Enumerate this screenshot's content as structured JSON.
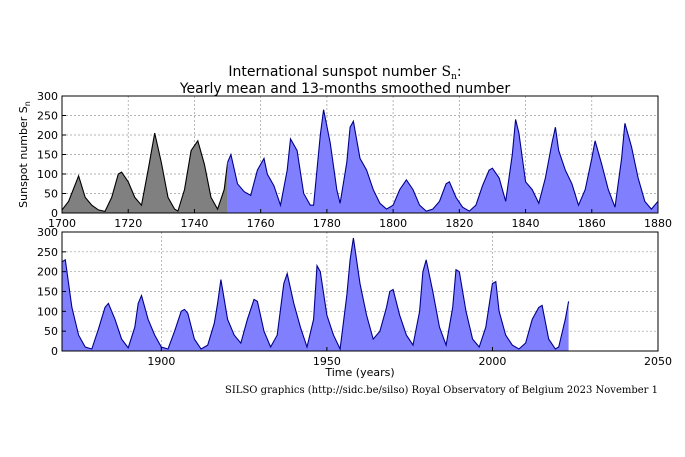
{
  "title_line1": "International sunspot number",
  "title_symbol": "S",
  "title_symbol_sub": "n",
  "title_colon": ":",
  "title_line2": "Yearly mean and 13-months smoothed number",
  "credit": "SILSO graphics (http://sidc.be/silso)  Royal Observatory of Belgium  2023 November 1",
  "colors": {
    "early": "#808080",
    "modern": "#8080ff",
    "modern_line": "#00008b",
    "early_line": "#000000"
  },
  "chart_data": [
    {
      "type": "area",
      "panel": "top",
      "ylabel": "Sunspot number S",
      "ylabel_sub": "n",
      "xlabel": "",
      "xlim": [
        1700,
        1880
      ],
      "ylim": [
        0,
        300
      ],
      "xticks": [
        1700,
        1720,
        1740,
        1760,
        1780,
        1800,
        1820,
        1840,
        1860,
        1880
      ],
      "yticks": [
        0,
        50,
        100,
        150,
        200,
        250,
        300
      ],
      "grid": true,
      "series": [
        {
          "style": "early",
          "until": 1750,
          "x": [
            1700,
            1702,
            1705,
            1707,
            1709,
            1711,
            1713,
            1715,
            1717,
            1718,
            1720,
            1722,
            1724,
            1726,
            1728,
            1730,
            1732,
            1734,
            1735,
            1737,
            1739,
            1741,
            1743,
            1745,
            1747,
            1749,
            1750
          ],
          "y": [
            8,
            30,
            95,
            40,
            20,
            8,
            4,
            40,
            100,
            105,
            80,
            40,
            20,
            110,
            205,
            130,
            40,
            10,
            5,
            60,
            160,
            185,
            125,
            40,
            10,
            60,
            130
          ]
        },
        {
          "style": "modern",
          "from": 1750,
          "x": [
            1750,
            1751,
            1753,
            1755,
            1757,
            1759,
            1761,
            1762,
            1764,
            1766,
            1768,
            1769,
            1771,
            1773,
            1775,
            1776,
            1778,
            1779,
            1781,
            1783,
            1784,
            1786,
            1787,
            1788,
            1790,
            1792,
            1794,
            1796,
            1798,
            1800,
            1802,
            1804,
            1806,
            1808,
            1810,
            1812,
            1814,
            1816,
            1817,
            1819,
            1821,
            1823,
            1825,
            1827,
            1829,
            1830,
            1832,
            1834,
            1836,
            1837,
            1838,
            1840,
            1842,
            1844,
            1846,
            1848,
            1849,
            1850,
            1852,
            1854,
            1856,
            1858,
            1860,
            1861,
            1863,
            1865,
            1867,
            1869,
            1870,
            1872,
            1874,
            1876,
            1878,
            1880
          ],
          "y": [
            130,
            150,
            75,
            55,
            45,
            110,
            140,
            100,
            70,
            20,
            110,
            190,
            160,
            50,
            20,
            20,
            200,
            265,
            180,
            60,
            25,
            130,
            220,
            235,
            140,
            110,
            60,
            25,
            10,
            20,
            60,
            85,
            60,
            20,
            5,
            10,
            30,
            75,
            80,
            40,
            15,
            5,
            20,
            70,
            110,
            115,
            90,
            30,
            150,
            240,
            205,
            80,
            60,
            25,
            90,
            180,
            220,
            160,
            110,
            75,
            20,
            60,
            140,
            185,
            125,
            60,
            15,
            140,
            230,
            170,
            90,
            30,
            10,
            30
          ]
        }
      ]
    },
    {
      "type": "area",
      "panel": "bottom",
      "xlabel": "Time (years)",
      "ylabel": "",
      "xlim": [
        1870,
        2050
      ],
      "ylim": [
        0,
        300
      ],
      "xticks": [
        1900,
        1950,
        2000,
        2050
      ],
      "yticks": [
        0,
        50,
        100,
        150,
        200,
        250,
        300
      ],
      "grid": true,
      "series": [
        {
          "style": "modern",
          "x": [
            1870,
            1871,
            1873,
            1875,
            1877,
            1879,
            1881,
            1883,
            1884,
            1886,
            1888,
            1890,
            1892,
            1893,
            1894,
            1896,
            1898,
            1900,
            1902,
            1904,
            1906,
            1907,
            1908,
            1910,
            1912,
            1914,
            1916,
            1917,
            1918,
            1920,
            1922,
            1924,
            1926,
            1928,
            1929,
            1931,
            1933,
            1935,
            1937,
            1938,
            1940,
            1942,
            1944,
            1946,
            1947,
            1948,
            1950,
            1952,
            1954,
            1956,
            1957,
            1958,
            1960,
            1962,
            1964,
            1966,
            1968,
            1969,
            1970,
            1972,
            1974,
            1976,
            1978,
            1979,
            1980,
            1982,
            1984,
            1986,
            1988,
            1989,
            1990,
            1992,
            1994,
            1996,
            1998,
            2000,
            2001,
            2002,
            2004,
            2006,
            2008,
            2010,
            2012,
            2014,
            2015,
            2017,
            2019,
            2020,
            2022,
            2023
          ],
          "y": [
            225,
            230,
            110,
            40,
            10,
            5,
            55,
            110,
            120,
            80,
            30,
            8,
            60,
            120,
            140,
            80,
            40,
            10,
            5,
            50,
            100,
            105,
            95,
            30,
            5,
            15,
            70,
            120,
            180,
            80,
            40,
            20,
            80,
            130,
            125,
            50,
            10,
            40,
            170,
            195,
            120,
            60,
            10,
            80,
            215,
            200,
            90,
            40,
            5,
            140,
            230,
            285,
            170,
            90,
            30,
            50,
            110,
            150,
            155,
            90,
            40,
            15,
            100,
            200,
            230,
            150,
            60,
            15,
            110,
            205,
            200,
            100,
            30,
            10,
            60,
            170,
            175,
            100,
            40,
            15,
            5,
            20,
            80,
            110,
            115,
            30,
            5,
            10,
            80,
            125
          ]
        }
      ]
    }
  ]
}
